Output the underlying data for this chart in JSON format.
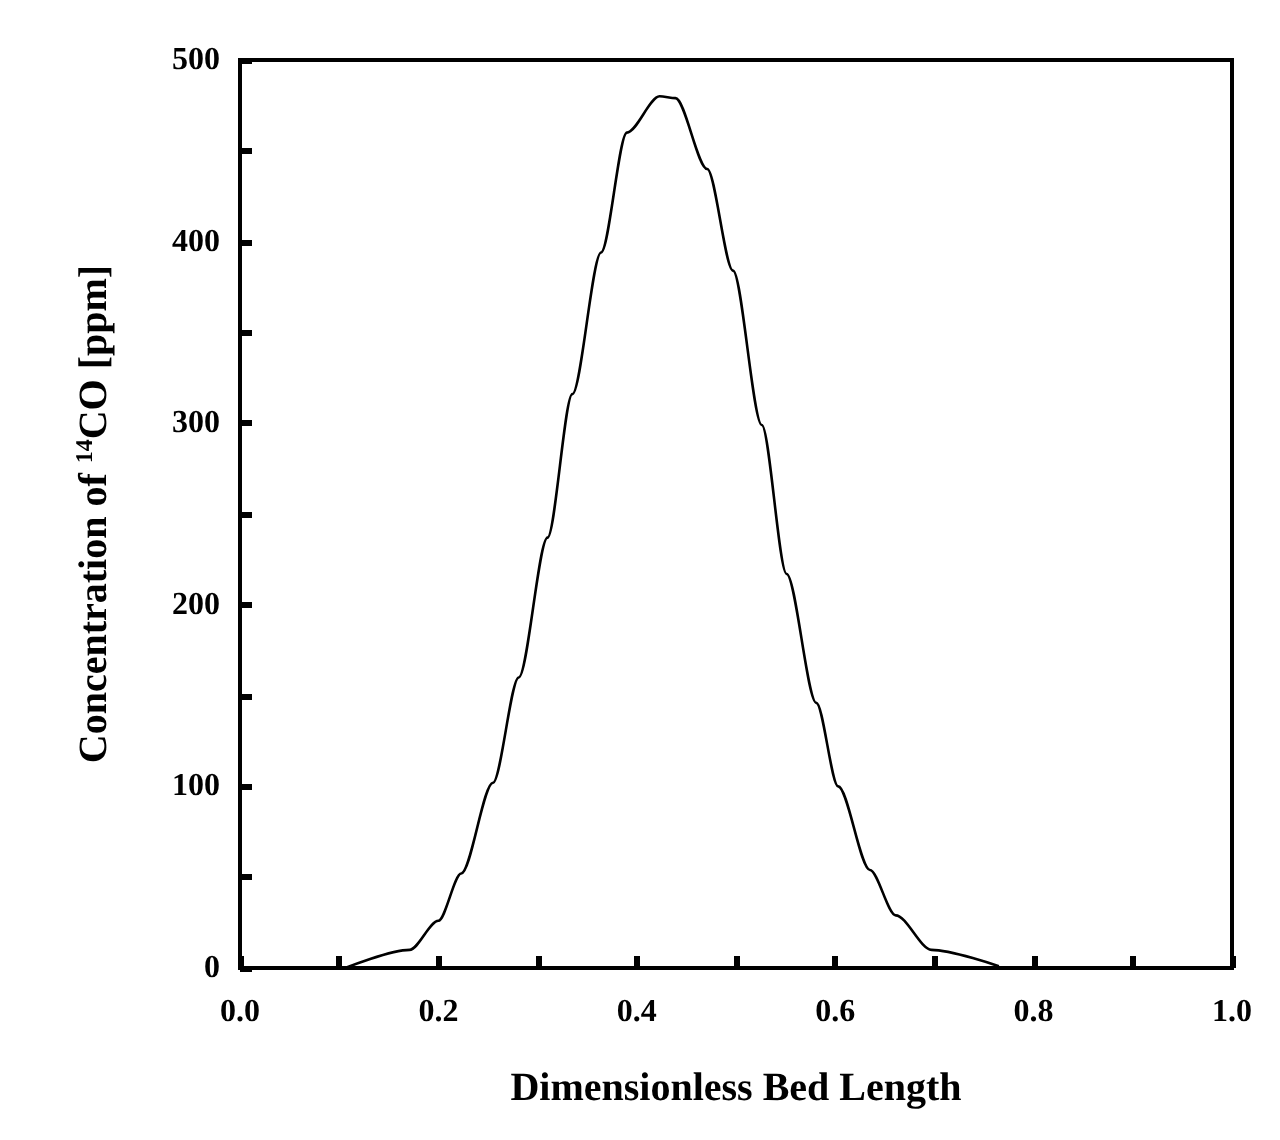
{
  "chart_data": {
    "type": "line",
    "xlabel": "Dimensionless Bed Length",
    "ylabel": "Concentration of $^{14}$CO [ppm]",
    "x": [
      0.106,
      0.171,
      0.2,
      0.223,
      0.255,
      0.281,
      0.31,
      0.335,
      0.364,
      0.39,
      0.423,
      0.439,
      0.471,
      0.497,
      0.526,
      0.551,
      0.581,
      0.603,
      0.635,
      0.661,
      0.697,
      0.765
    ],
    "series": [
      {
        "color": "#000000",
        "values": [
          0,
          10,
          26,
          52,
          102,
          160,
          237,
          316,
          394,
          460,
          480,
          479,
          440,
          384,
          299,
          217,
          146,
          100,
          54,
          29,
          10,
          1
        ]
      }
    ],
    "xlim": [
      0,
      1
    ],
    "ylim": [
      0,
      500
    ],
    "xticks": [
      {
        "value": 0,
        "label": "0.0"
      },
      {
        "value": 0.1,
        "label": null
      },
      {
        "value": 0.2,
        "label": "0.2"
      },
      {
        "value": 0.3,
        "label": null
      },
      {
        "value": 0.4,
        "label": "0.4"
      },
      {
        "value": 0.5,
        "label": null
      },
      {
        "value": 0.6,
        "label": "0.6"
      },
      {
        "value": 0.7,
        "label": null
      },
      {
        "value": 0.8,
        "label": "0.8"
      },
      {
        "value": 0.9,
        "label": null
      },
      {
        "value": 1,
        "label": "1.0"
      }
    ],
    "yticks": [
      0,
      {
        "value": 50,
        "label": null
      },
      100,
      {
        "value": 150,
        "label": null
      },
      200,
      {
        "value": 250,
        "label": null
      },
      300,
      {
        "value": 350,
        "label": null
      },
      400,
      {
        "value": 450,
        "label": null
      },
      500
    ],
    "grid": false,
    "marker": "none",
    "line_style": "solid"
  }
}
